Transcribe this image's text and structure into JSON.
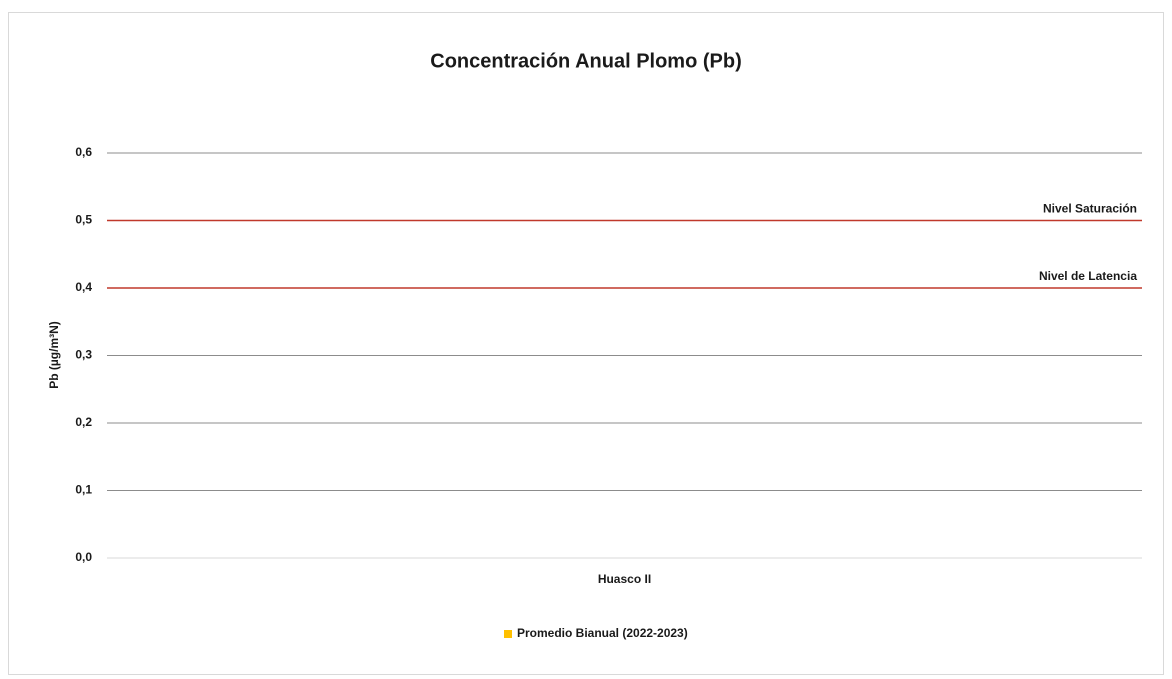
{
  "chart_data": {
    "type": "bar",
    "title": "Concentración Anual Plomo (Pb)",
    "y_label": "Pb (µg/m³N)",
    "categories": [
      "Huasco II"
    ],
    "series": [
      {
        "name": "Promedio Bianual (2022-2023)",
        "color": "#ffc000",
        "values": [
          0
        ]
      }
    ],
    "ylim": [
      0,
      0.6
    ],
    "yticks": [
      {
        "value": 0,
        "label": "0,0"
      },
      {
        "value": 0.1,
        "label": "0,1"
      },
      {
        "value": 0.2,
        "label": "0,2"
      },
      {
        "value": 0.3,
        "label": "0,3"
      },
      {
        "value": 0.4,
        "label": "0,4"
      },
      {
        "value": 0.5,
        "label": "0,5"
      },
      {
        "value": 0.6,
        "label": "0,6"
      }
    ],
    "grid": true,
    "legend": "bottom",
    "reference_lines": [
      {
        "name": "Nivel Saturación",
        "value": 0.5,
        "color": "#c0392b"
      },
      {
        "name": "Nivel de Latencia",
        "value": 0.4,
        "color": "#c0392b"
      }
    ]
  }
}
